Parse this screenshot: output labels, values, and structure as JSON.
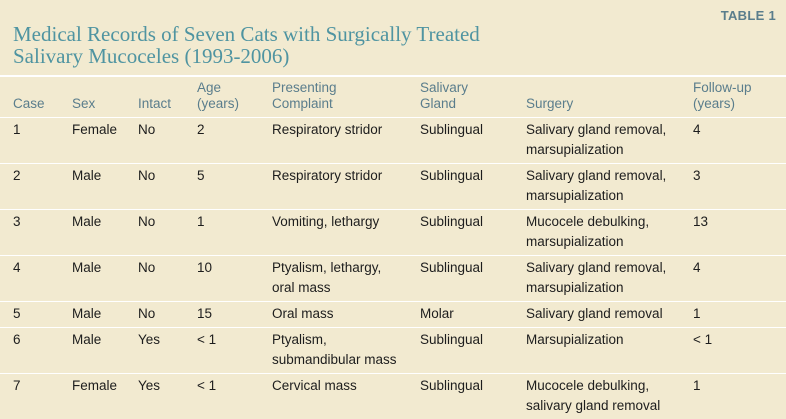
{
  "table_label": "TABLE 1",
  "title_line1": "Medical Records of Seven Cats with Surgically Treated",
  "title_line2": "Salivary Mucoceles (1993-2006)",
  "columns": [
    {
      "line1": "",
      "line2": "Case"
    },
    {
      "line1": "",
      "line2": "Sex"
    },
    {
      "line1": "",
      "line2": "Intact"
    },
    {
      "line1": "Age",
      "line2": "(years)"
    },
    {
      "line1": "Presenting",
      "line2": "Complaint"
    },
    {
      "line1": "Salivary",
      "line2": "Gland"
    },
    {
      "line1": "",
      "line2": "Surgery"
    },
    {
      "line1": "Follow-up",
      "line2": "(years)"
    }
  ],
  "rows": [
    {
      "case": "1",
      "sex": "Female",
      "intact": "No",
      "age": "2",
      "complaint": [
        "Respiratory stridor"
      ],
      "gland": "Sublingual",
      "surgery": [
        "Salivary gland removal,",
        "marsupialization"
      ],
      "followup": "4"
    },
    {
      "case": "2",
      "sex": "Male",
      "intact": "No",
      "age": "5",
      "complaint": [
        "Respiratory stridor"
      ],
      "gland": "Sublingual",
      "surgery": [
        "Salivary gland removal,",
        "marsupialization"
      ],
      "followup": "3"
    },
    {
      "case": "3",
      "sex": "Male",
      "intact": "No",
      "age": "1",
      "complaint": [
        "Vomiting, lethargy"
      ],
      "gland": "Sublingual",
      "surgery": [
        "Mucocele debulking,",
        "marsupialization"
      ],
      "followup": "13"
    },
    {
      "case": "4",
      "sex": "Male",
      "intact": "No",
      "age": "10",
      "complaint": [
        "Ptyalism, lethargy,",
        "oral mass"
      ],
      "gland": "Sublingual",
      "surgery": [
        "Salivary gland removal,",
        "marsupialization"
      ],
      "followup": "4"
    },
    {
      "case": "5",
      "sex": "Male",
      "intact": "No",
      "age": "15",
      "complaint": [
        "Oral mass"
      ],
      "gland": "Molar",
      "surgery": [
        "Salivary gland removal"
      ],
      "followup": "1"
    },
    {
      "case": "6",
      "sex": "Male",
      "intact": "Yes",
      "age": "< 1",
      "complaint": [
        "Ptyalism,",
        "submandibular mass"
      ],
      "gland": "Sublingual",
      "surgery": [
        "Marsupialization"
      ],
      "followup": "< 1"
    },
    {
      "case": "7",
      "sex": "Female",
      "intact": "Yes",
      "age": "< 1",
      "complaint": [
        "Cervical mass"
      ],
      "gland": "Sublingual",
      "surgery": [
        "Mucocele debulking,",
        "salivary gland removal"
      ],
      "followup": "1"
    }
  ]
}
